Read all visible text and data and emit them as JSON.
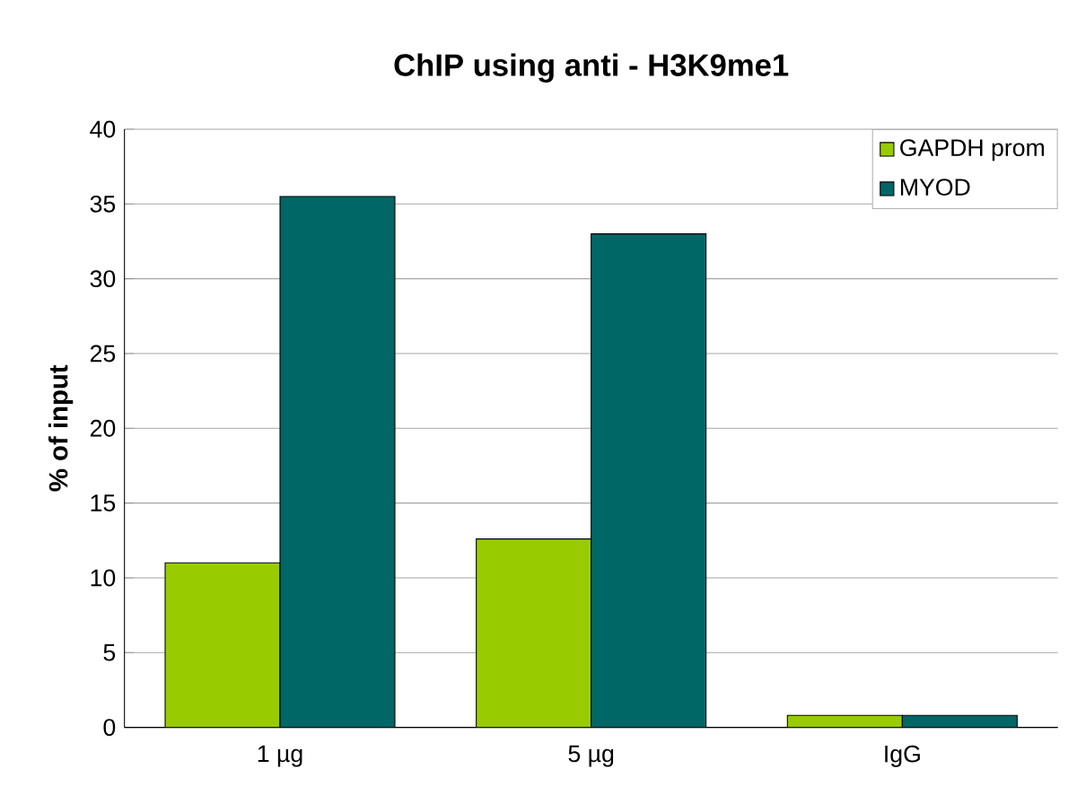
{
  "chart_data": {
    "type": "bar",
    "title": "ChIP using  anti - H3K9me1",
    "ylabel": "% of input",
    "categories": [
      "1 µg",
      "5 µg",
      "IgG"
    ],
    "series": [
      {
        "name": "GAPDH prom",
        "color": "#99cc00",
        "values": [
          11,
          12.6,
          0.8
        ]
      },
      {
        "name": "MYOD",
        "color": "#006666",
        "values": [
          35.5,
          33,
          0.8
        ]
      }
    ],
    "ylim": [
      0,
      40
    ],
    "yticks": [
      0,
      5,
      10,
      15,
      20,
      25,
      30,
      35,
      40
    ],
    "grid": "y",
    "legend": "top right"
  }
}
